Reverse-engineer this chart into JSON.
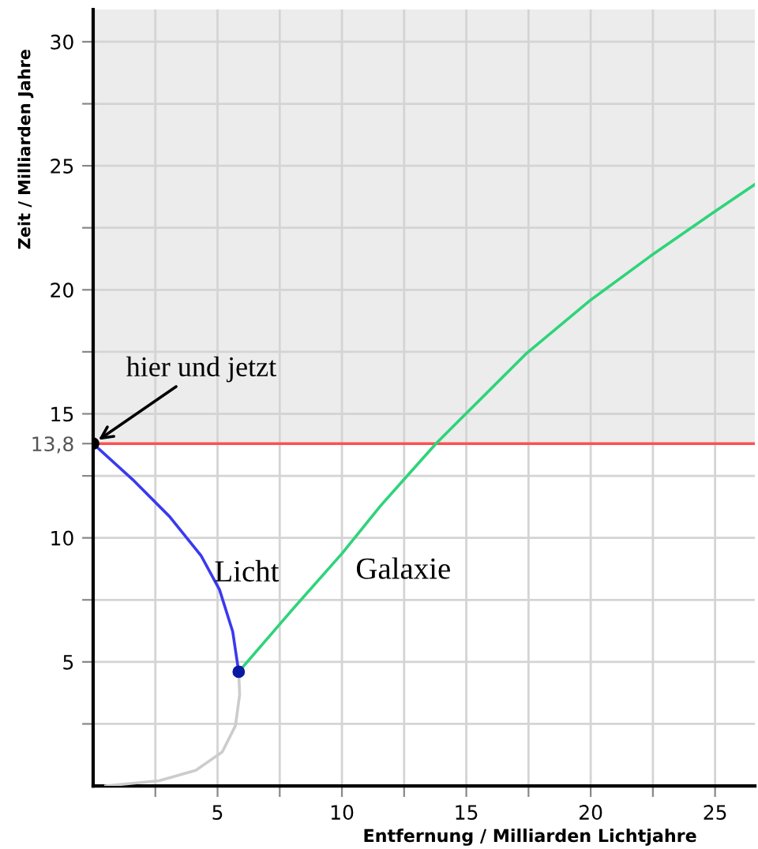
{
  "chart_data": {
    "type": "line",
    "xlabel": "Entfernung / Milliarden Lichtjahre",
    "ylabel": "Zeit / Milliarden Jahre",
    "xlim": [
      0,
      26.6
    ],
    "ylim": [
      0,
      31.3
    ],
    "xticks": [
      {
        "value": 2.5,
        "label": null
      },
      5,
      {
        "value": 7.5,
        "label": null
      },
      10,
      {
        "value": 12.5,
        "label": null
      },
      15,
      {
        "value": 17.5,
        "label": null
      },
      20,
      {
        "value": 22.5,
        "label": null
      },
      25
    ],
    "yticks": [
      {
        "value": 2.5,
        "label": null
      },
      5,
      {
        "value": 7.5,
        "label": null
      },
      10,
      {
        "value": 12.5,
        "label": null
      },
      {
        "value": 13.8,
        "label": "13,8"
      },
      15,
      {
        "value": 17.5,
        "label": null
      },
      20,
      {
        "value": 22.5,
        "label": null
      },
      25,
      {
        "value": 27.5,
        "label": null
      },
      30
    ],
    "grid": true,
    "bands": [
      {
        "axis": "y",
        "from": 13.8,
        "to": 31.3,
        "color": "#ececec"
      }
    ],
    "ref_lines": [
      {
        "axis": "y",
        "value": 13.8,
        "color": "#ff5050"
      }
    ],
    "series": [
      {
        "color": "#cccccc",
        "x": [
          0.5,
          2.65,
          4.13,
          5.19,
          5.72,
          5.89,
          5.85
        ],
        "values": [
          0,
          0.21,
          0.63,
          1.37,
          2.43,
          3.69,
          4.6
        ]
      },
      {
        "name": "Licht",
        "color": "#3a3aee",
        "x": [
          0,
          1.59,
          3.07,
          4.34,
          5.08,
          5.61,
          5.85
        ],
        "values": [
          13.8,
          12.35,
          10.86,
          9.28,
          7.91,
          6.22,
          4.6
        ]
      },
      {
        "name": "Galaxie",
        "color": "#2ed47a",
        "x": [
          5.85,
          8,
          10.02,
          11.55,
          13.78,
          14.46,
          15.09,
          17.42,
          19.96,
          22.39,
          24.83,
          26.6
        ],
        "values": [
          4.6,
          7.1,
          9.39,
          11.29,
          13.8,
          14.48,
          15.11,
          17.44,
          19.56,
          21.35,
          23.05,
          24.25
        ]
      },
      {
        "type": "scatter",
        "colors": [
          "#000000",
          "#0a1aa0"
        ],
        "x": [
          0,
          5.85
        ],
        "values": [
          13.8,
          4.6
        ]
      }
    ],
    "annotations": [
      {
        "text": "hier und jetzt",
        "x": 0,
        "y": 13.8
      }
    ]
  }
}
